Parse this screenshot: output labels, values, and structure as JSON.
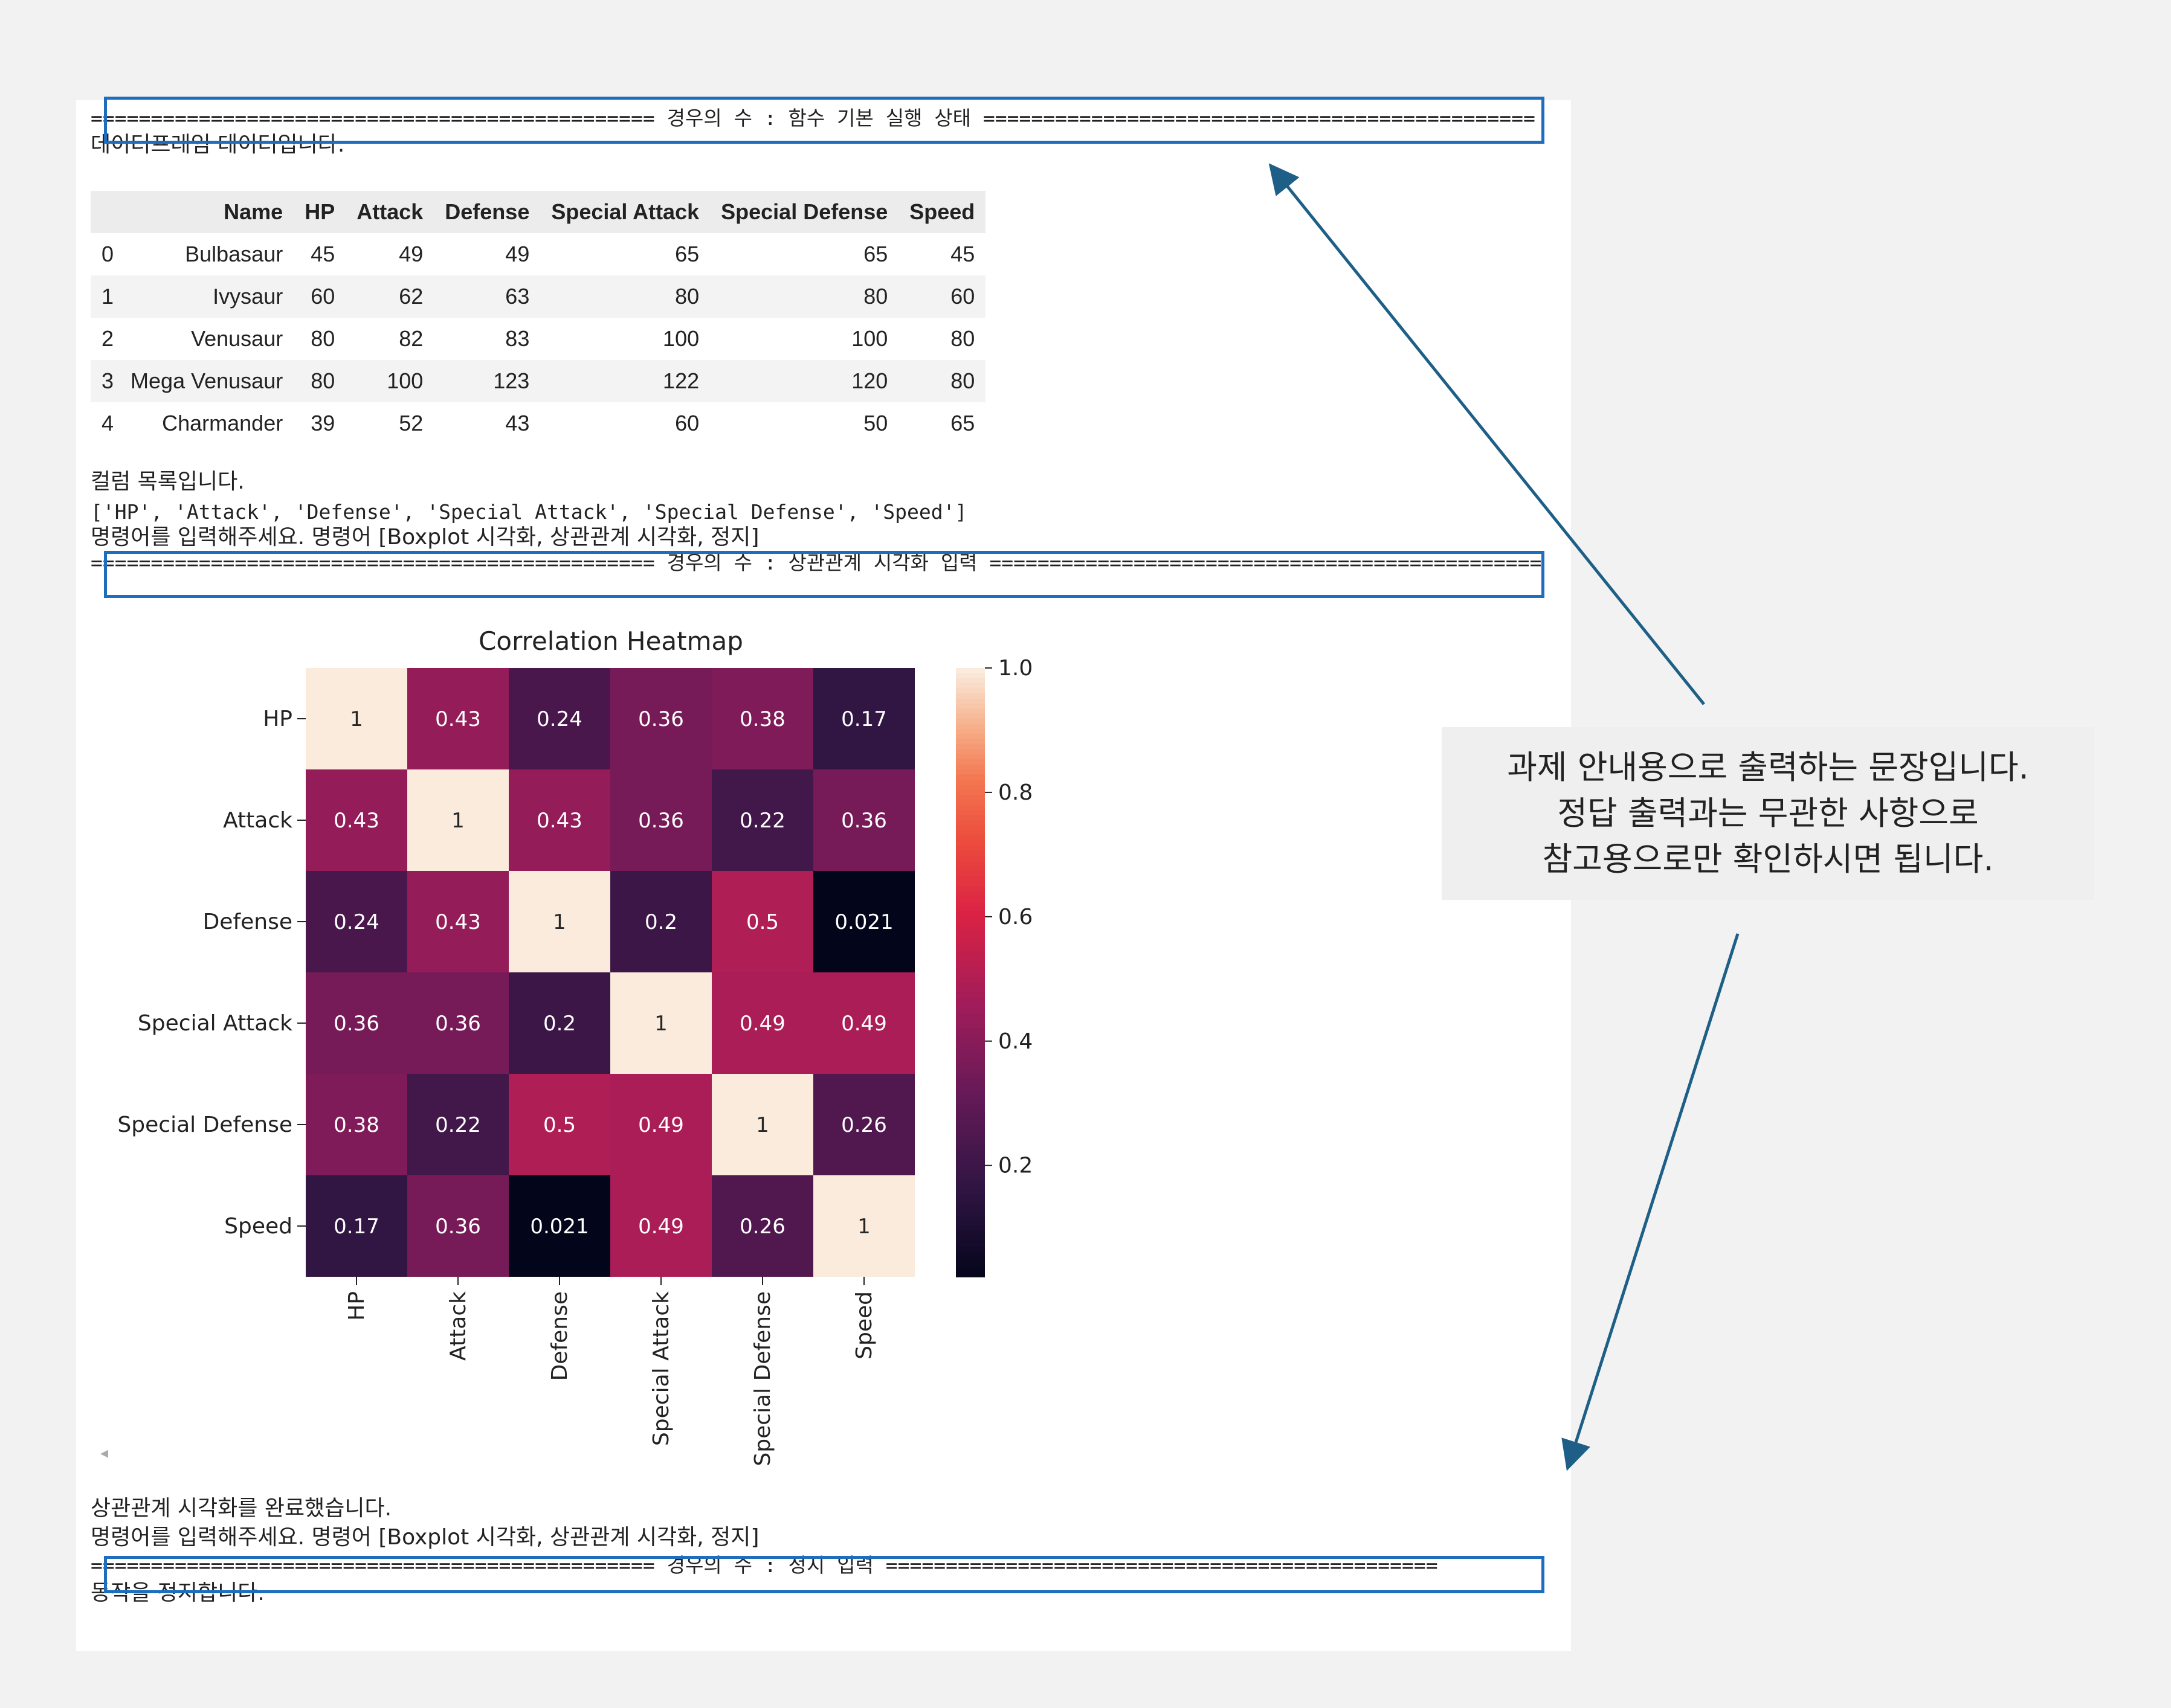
{
  "case_headers": {
    "default": "=============================================== 경우의 수 : 함수 기본 실행 상태 ==============================================",
    "correlation": "=============================================== 경우의 수 : 상관관계 시각화 입력 ==============================================",
    "stop": "=============================================== 경우의 수 : 정지 입력 =============================================="
  },
  "output": {
    "dataframe_msg": "데이터프레임 데이터입니다.",
    "columns_msg": "컬럼 목록입니다.",
    "columns_list": "['HP', 'Attack', 'Defense', 'Special Attack', 'Special Defense', 'Speed']",
    "prompt_1": "명령어를 입력해주세요. 명령어 [Boxplot 시각화, 상관관계 시각화, 정지]",
    "done_msg": "상관관계 시각화를 완료했습니다.",
    "prompt_2": "명령어를 입력해주세요. 명령어 [Boxplot 시각화, 상관관계 시각화, 정지]",
    "stop_msg": "동작을 정지합니다.",
    "scroll_left_icon": "◂"
  },
  "table": {
    "columns": [
      "",
      "Name",
      "HP",
      "Attack",
      "Defense",
      "Special Attack",
      "Special Defense",
      "Speed"
    ],
    "rows": [
      [
        "0",
        "Bulbasaur",
        "45",
        "49",
        "49",
        "65",
        "65",
        "45"
      ],
      [
        "1",
        "Ivysaur",
        "60",
        "62",
        "63",
        "80",
        "80",
        "60"
      ],
      [
        "2",
        "Venusaur",
        "80",
        "82",
        "83",
        "100",
        "100",
        "80"
      ],
      [
        "3",
        "Mega Venusaur",
        "80",
        "100",
        "123",
        "122",
        "120",
        "80"
      ],
      [
        "4",
        "Charmander",
        "39",
        "52",
        "43",
        "60",
        "50",
        "65"
      ]
    ]
  },
  "chart_data": {
    "type": "heatmap",
    "title": "Correlation Heatmap",
    "rows": [
      "HP",
      "Attack",
      "Defense",
      "Special Attack",
      "Special Defense",
      "Speed"
    ],
    "cols": [
      "HP",
      "Attack",
      "Defense",
      "Special Attack",
      "Special Defense",
      "Speed"
    ],
    "values": [
      [
        1,
        0.43,
        0.24,
        0.36,
        0.38,
        0.17
      ],
      [
        0.43,
        1,
        0.43,
        0.36,
        0.22,
        0.36
      ],
      [
        0.24,
        0.43,
        1,
        0.2,
        0.5,
        0.021
      ],
      [
        0.36,
        0.36,
        0.2,
        1,
        0.49,
        0.49
      ],
      [
        0.38,
        0.22,
        0.5,
        0.49,
        1,
        0.26
      ],
      [
        0.17,
        0.36,
        0.021,
        0.49,
        0.26,
        1
      ]
    ],
    "colorbar_ticks": [
      "1.0",
      "0.8",
      "0.6",
      "0.4",
      "0.2"
    ],
    "colorbar_range": [
      0.021,
      1.0
    ],
    "colormap": "rocket"
  },
  "note": {
    "lines": [
      "과제 안내용으로 출력하는 문장입니다.",
      "정답 출력과는 무관한 사항으로",
      "참고용으로만 확인하시면 됩니다."
    ]
  },
  "colors": {
    "highlight": "#1f6dbd",
    "arrow": "#1d5f86"
  }
}
